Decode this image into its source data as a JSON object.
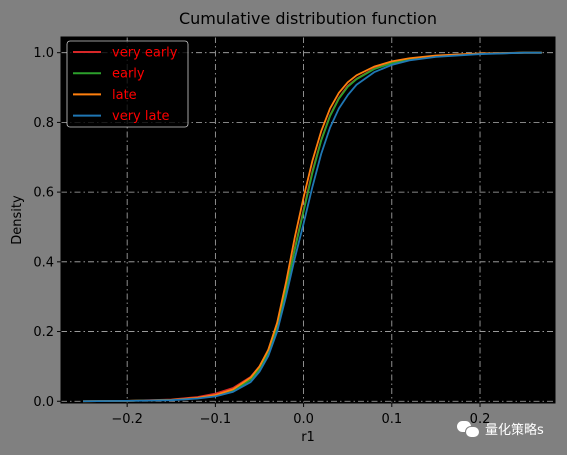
{
  "chart_data": {
    "type": "line",
    "title": "Cumulative distribution function",
    "xlabel": "r1",
    "ylabel": "Density",
    "xlim": [
      -0.275,
      0.285
    ],
    "ylim": [
      -0.005,
      1.045
    ],
    "xticks": [
      -0.2,
      -0.1,
      0.0,
      0.1,
      0.2
    ],
    "xtick_labels": [
      "−0.2",
      "−0.1",
      "0.0",
      "0.1",
      "0.2"
    ],
    "yticks": [
      0.0,
      0.2,
      0.4,
      0.6,
      0.8,
      1.0
    ],
    "ytick_labels": [
      "0.0",
      "0.2",
      "0.4",
      "0.6",
      "0.8",
      "1.0"
    ],
    "grid": true,
    "grid_style": "dash-dot",
    "legend_position": "top-left",
    "background": "#000000",
    "series": [
      {
        "name": "very early",
        "color": "#d62728",
        "x": [
          -0.25,
          -0.2,
          -0.15,
          -0.12,
          -0.1,
          -0.08,
          -0.06,
          -0.05,
          -0.04,
          -0.03,
          -0.02,
          -0.01,
          0.0,
          0.01,
          0.02,
          0.03,
          0.04,
          0.05,
          0.06,
          0.08,
          0.1,
          0.12,
          0.15,
          0.2,
          0.25,
          0.27
        ],
        "y": [
          0.0,
          0.001,
          0.005,
          0.012,
          0.022,
          0.038,
          0.07,
          0.1,
          0.145,
          0.215,
          0.32,
          0.44,
          0.55,
          0.66,
          0.75,
          0.82,
          0.87,
          0.905,
          0.925,
          0.955,
          0.972,
          0.982,
          0.99,
          0.997,
          1.0,
          1.0
        ]
      },
      {
        "name": "early",
        "color": "#2ca02c",
        "x": [
          -0.25,
          -0.2,
          -0.15,
          -0.12,
          -0.1,
          -0.08,
          -0.06,
          -0.05,
          -0.04,
          -0.03,
          -0.02,
          -0.01,
          0.0,
          0.01,
          0.02,
          0.03,
          0.04,
          0.05,
          0.06,
          0.08,
          0.1,
          0.12,
          0.15,
          0.2,
          0.25,
          0.27
        ],
        "y": [
          0.0,
          0.001,
          0.004,
          0.009,
          0.016,
          0.03,
          0.062,
          0.092,
          0.138,
          0.21,
          0.318,
          0.435,
          0.545,
          0.655,
          0.748,
          0.818,
          0.868,
          0.902,
          0.924,
          0.953,
          0.97,
          0.981,
          0.99,
          0.997,
          1.0,
          1.0
        ]
      },
      {
        "name": "late",
        "color": "#ff7f0e",
        "x": [
          -0.25,
          -0.2,
          -0.15,
          -0.12,
          -0.1,
          -0.08,
          -0.06,
          -0.05,
          -0.04,
          -0.03,
          -0.02,
          -0.01,
          0.0,
          0.01,
          0.02,
          0.03,
          0.04,
          0.05,
          0.06,
          0.08,
          0.1,
          0.12,
          0.15,
          0.2,
          0.25,
          0.27
        ],
        "y": [
          0.0,
          0.001,
          0.004,
          0.01,
          0.018,
          0.034,
          0.068,
          0.1,
          0.148,
          0.225,
          0.34,
          0.47,
          0.585,
          0.69,
          0.775,
          0.84,
          0.885,
          0.915,
          0.935,
          0.96,
          0.975,
          0.984,
          0.992,
          0.998,
          1.0,
          1.0
        ]
      },
      {
        "name": "very late",
        "color": "#1f77b4",
        "x": [
          -0.25,
          -0.2,
          -0.15,
          -0.12,
          -0.1,
          -0.08,
          -0.06,
          -0.05,
          -0.04,
          -0.03,
          -0.02,
          -0.01,
          0.0,
          0.01,
          0.02,
          0.03,
          0.04,
          0.05,
          0.06,
          0.08,
          0.1,
          0.12,
          0.15,
          0.2,
          0.25,
          0.27
        ],
        "y": [
          0.0,
          0.001,
          0.003,
          0.008,
          0.014,
          0.027,
          0.055,
          0.085,
          0.13,
          0.2,
          0.3,
          0.41,
          0.51,
          0.615,
          0.71,
          0.785,
          0.84,
          0.878,
          0.908,
          0.944,
          0.965,
          0.978,
          0.988,
          0.996,
          1.0,
          1.0
        ]
      }
    ]
  },
  "watermark": {
    "icon": "wechat-icon",
    "text": "量化策略s"
  }
}
